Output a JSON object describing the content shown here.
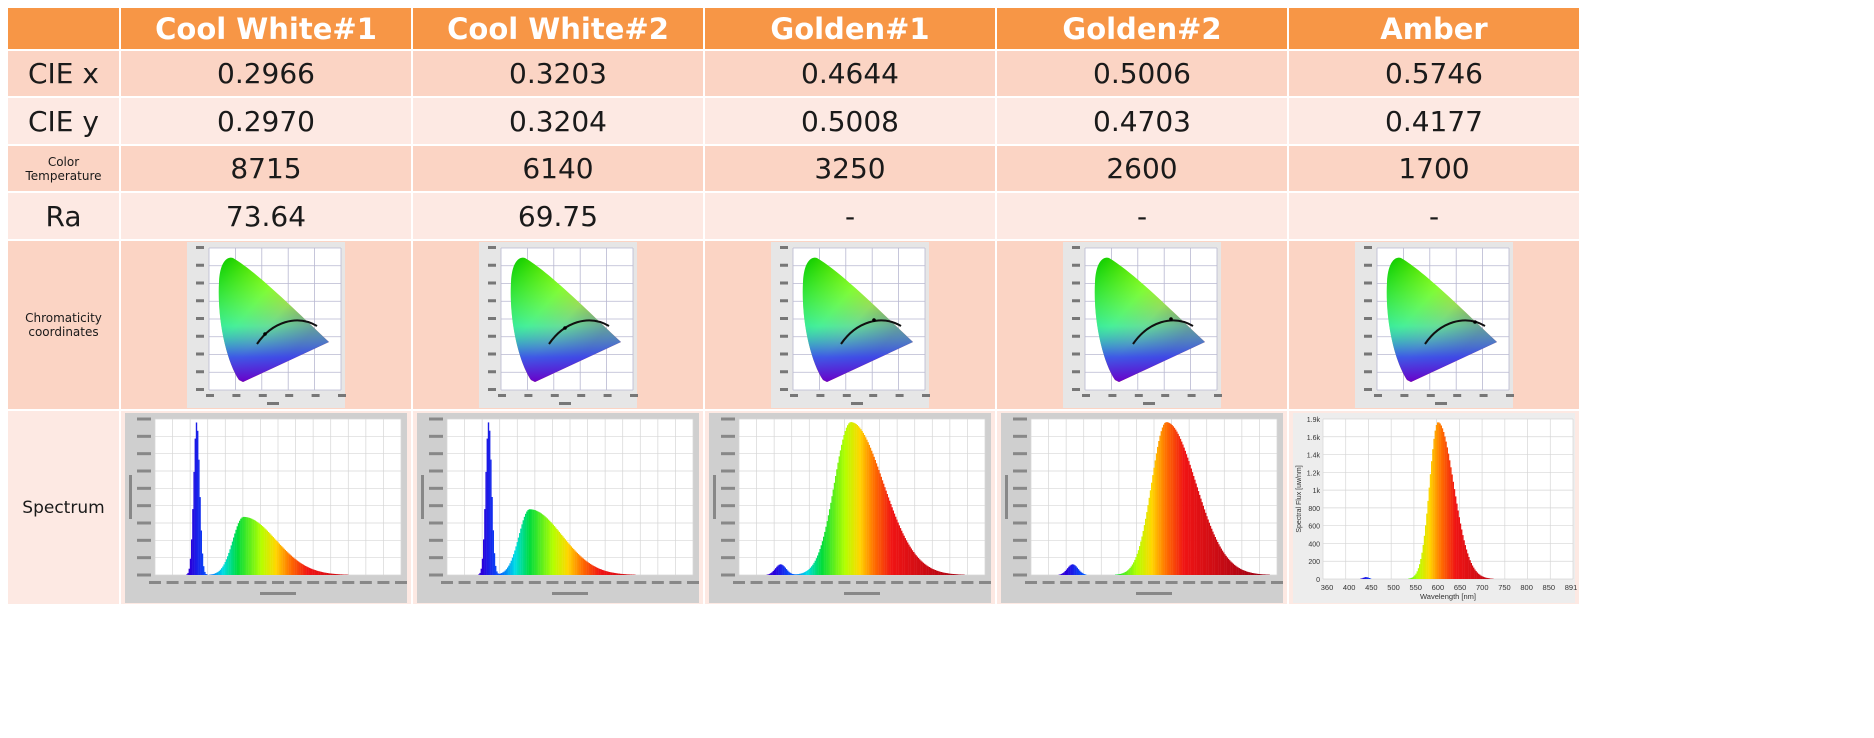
{
  "header": {
    "columns": [
      "Cool White#1",
      "Cool White#2",
      "Golden#1",
      "Golden#2",
      "Amber"
    ]
  },
  "rows": {
    "cie_x": {
      "label": "CIE x",
      "values": [
        "0.2966",
        "0.3203",
        "0.4644",
        "0.5006",
        "0.5746"
      ]
    },
    "cie_y": {
      "label": "CIE y",
      "values": [
        "0.2970",
        "0.3204",
        "0.5008",
        "0.4703",
        "0.4177"
      ]
    },
    "cct": {
      "label_line1": "Color",
      "label_line2": "Temperature",
      "values": [
        "8715",
        "6140",
        "3250",
        "2600",
        "1700"
      ]
    },
    "ra": {
      "label": "Ra",
      "values": [
        "73.64",
        "69.75",
        "-",
        "-",
        "-"
      ]
    },
    "chromaticity": {
      "label_line1": "Chromaticity",
      "label_line2": "coordinates"
    },
    "spectrum": {
      "label": "Spectrum"
    }
  },
  "amber_spectrum_axis": {
    "ylabel": "Spectral Flux [uw/nm]",
    "xlabel": "Wavelength [nm]",
    "yticks": [
      "1.9k",
      "1.6k",
      "1.4k",
      "1.2k",
      "1k",
      "800",
      "600",
      "400",
      "200",
      "0"
    ],
    "xticks": [
      "360",
      "400",
      "450",
      "500",
      "550",
      "600",
      "650",
      "700",
      "750",
      "800",
      "850",
      "891"
    ]
  },
  "colors": {
    "header_bg": "#f79646",
    "row_dark": "#fbd4c4",
    "row_light": "#fde9e3"
  }
}
